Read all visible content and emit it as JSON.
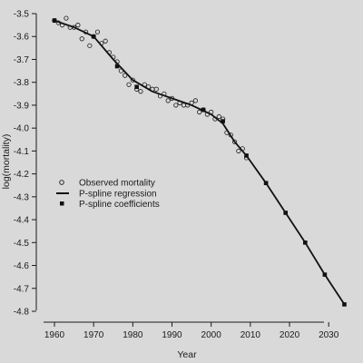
{
  "chart_data": {
    "type": "scatter",
    "title": "",
    "xlabel": "Year",
    "ylabel": "log(mortality)",
    "xlim": [
      1958,
      2036
    ],
    "ylim": [
      -4.84,
      -3.49
    ],
    "grid": false,
    "legend_placement": "middle-left",
    "x_ticks": [
      1960,
      1970,
      1980,
      1990,
      2000,
      2010,
      2020,
      2030
    ],
    "x_tick_labels": [
      "1960",
      "1970",
      "1980",
      "1990",
      "2000",
      "2010",
      "2020",
      "2030"
    ],
    "y_ticks": [
      -3.5,
      -3.6,
      -3.7,
      -3.8,
      -3.9,
      -4.0,
      -4.1,
      -4.2,
      -4.3,
      -4.4,
      -4.5,
      -4.6,
      -4.7,
      -4.8
    ],
    "y_tick_labels": [
      "-3.5",
      "-3.6",
      "-3.7",
      "-3.8",
      "-3.9",
      "-4.0",
      "-4.1",
      "-4.2",
      "-4.3",
      "-4.4",
      "-4.5",
      "-4.6",
      "-4.7",
      "-4.8"
    ],
    "legend": [
      {
        "label": "Observed mortality",
        "marker": "open-circle"
      },
      {
        "label": "P-spline regression",
        "marker": "line"
      },
      {
        "label": "P-spline coefficients",
        "marker": "filled-square"
      }
    ],
    "series": [
      {
        "name": "Observed mortality",
        "kind": "points",
        "marker": "open-circle",
        "x": [
          1960,
          1961,
          1962,
          1963,
          1964,
          1965,
          1966,
          1967,
          1968,
          1969,
          1970,
          1971,
          1972,
          1973,
          1974,
          1975,
          1976,
          1977,
          1978,
          1979,
          1980,
          1981,
          1982,
          1983,
          1984,
          1985,
          1986,
          1987,
          1988,
          1989,
          1990,
          1991,
          1992,
          1993,
          1994,
          1995,
          1996,
          1997,
          1998,
          1999,
          2000,
          2001,
          2002,
          2003,
          2004,
          2005,
          2006,
          2007,
          2008,
          2009
        ],
        "y": [
          -3.53,
          -3.54,
          -3.55,
          -3.52,
          -3.56,
          -3.56,
          -3.55,
          -3.61,
          -3.58,
          -3.64,
          -3.6,
          -3.58,
          -3.63,
          -3.62,
          -3.67,
          -3.69,
          -3.71,
          -3.75,
          -3.77,
          -3.81,
          -3.79,
          -3.83,
          -3.84,
          -3.81,
          -3.82,
          -3.83,
          -3.83,
          -3.86,
          -3.85,
          -3.88,
          -3.87,
          -3.9,
          -3.89,
          -3.9,
          -3.9,
          -3.89,
          -3.88,
          -3.93,
          -3.92,
          -3.94,
          -3.93,
          -3.96,
          -3.95,
          -3.96,
          -4.02,
          -4.03,
          -4.06,
          -4.1,
          -4.09,
          -4.13
        ]
      },
      {
        "name": "P-spline regression",
        "kind": "line",
        "x": [
          1960,
          1965,
          1970,
          1975,
          1980,
          1985,
          1990,
          1995,
          2000,
          2003,
          2006,
          2009,
          2014,
          2019,
          2024,
          2029,
          2034
        ],
        "y": [
          -3.53,
          -3.56,
          -3.6,
          -3.7,
          -3.79,
          -3.84,
          -3.87,
          -3.9,
          -3.94,
          -3.98,
          -4.06,
          -4.12,
          -4.24,
          -4.37,
          -4.5,
          -4.64,
          -4.77
        ]
      },
      {
        "name": "P-spline coefficients",
        "kind": "points",
        "marker": "filled-square",
        "x": [
          1960,
          1970,
          1976,
          1981,
          1998,
          2003,
          2009,
          2014,
          2019,
          2024,
          2029,
          2034
        ],
        "y": [
          -3.53,
          -3.6,
          -3.73,
          -3.82,
          -3.92,
          -3.97,
          -4.12,
          -4.24,
          -4.37,
          -4.5,
          -4.64,
          -4.77
        ]
      }
    ]
  }
}
